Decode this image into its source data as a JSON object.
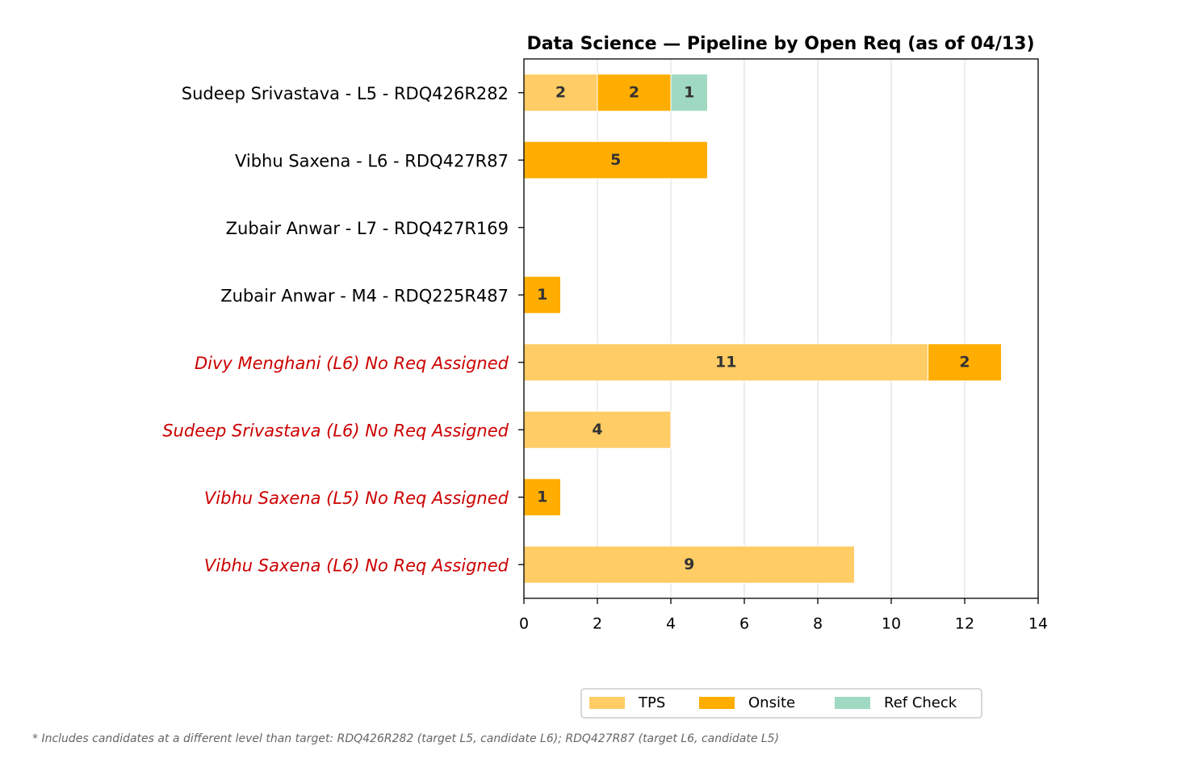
{
  "chart_data": {
    "type": "stacked_barh",
    "title": "Data Science — Pipeline by Open Req (as of 04/13)",
    "categories": [
      "Sudeep Srivastava - L5 - RDQ426R282",
      "Vibhu Saxena - L6 - RDQ427R87",
      "Zubair Anwar - L7 - RDQ427R169",
      "Zubair Anwar - M4 - RDQ225R487",
      "Divy Menghani (L6) No Req Assigned",
      "Sudeep Srivastava (L6) No Req Assigned",
      "Vibhu Saxena (L5) No Req Assigned",
      "Vibhu Saxena (L6) No Req Assigned"
    ],
    "category_colors": [
      "#000000",
      "#000000",
      "#000000",
      "#000000",
      "#cc0000",
      "#cc0000",
      "#cc0000",
      "#cc0000"
    ],
    "series": [
      {
        "name": "TPS",
        "color": "#ffcc66",
        "values": [
          2,
          0,
          0,
          0,
          11,
          4,
          0,
          9
        ]
      },
      {
        "name": "Onsite",
        "color": "#ffad00",
        "values": [
          2,
          5,
          0,
          1,
          2,
          0,
          1,
          0
        ]
      },
      {
        "name": "Ref Check",
        "color": "#a0d9c1",
        "values": [
          1,
          0,
          0,
          0,
          0,
          0,
          0,
          0
        ]
      }
    ],
    "xlim": [
      0,
      14
    ],
    "xticks": [
      0,
      2,
      4,
      6,
      8,
      10,
      12,
      14
    ],
    "grid": true,
    "legend": "below",
    "footnote": "* Includes candidates at a different level than target: RDQ426R282 (target L5, candidate L6); RDQ427R87 (target L6, candidate L5)"
  }
}
